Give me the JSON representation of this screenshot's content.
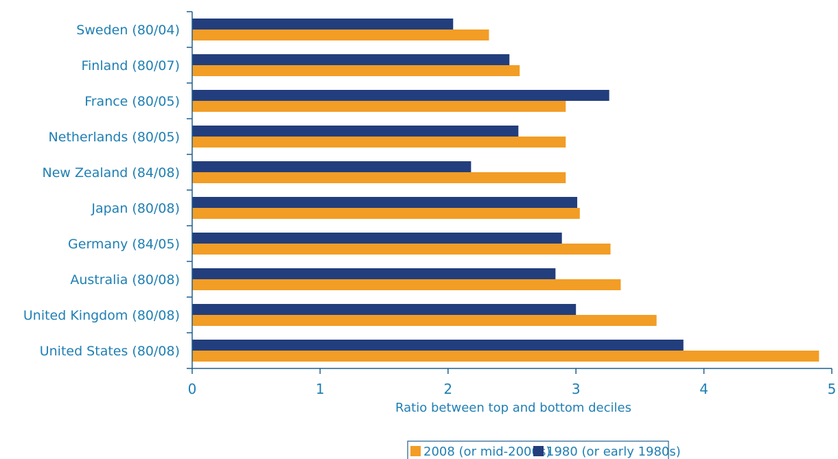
{
  "chart_data": {
    "type": "bar",
    "orientation": "horizontal",
    "xlabel": "Ratio between top and bottom deciles",
    "xlim": [
      0,
      5
    ],
    "xticks": [
      "0",
      "1",
      "2",
      "3",
      "4",
      "5"
    ],
    "grid": false,
    "legend_position": "bottom",
    "categories": [
      "Sweden (80/04)",
      "Finland (80/07)",
      "France (80/05)",
      "Netherlands (80/05)",
      "New Zealand (84/08)",
      "Japan (80/08)",
      "Germany (84/05)",
      "Australia (80/08)",
      "United Kingdom (80/08)",
      "United States (80/08)"
    ],
    "series": [
      {
        "name": "1980 (or early 1980s)",
        "color": "#233e7c",
        "values": [
          2.04,
          2.48,
          3.26,
          2.55,
          2.18,
          3.01,
          2.89,
          2.84,
          3.0,
          3.84
        ]
      },
      {
        "name": "2008 (or mid-2000s)",
        "color": "#f29d25",
        "values": [
          2.32,
          2.56,
          2.92,
          2.92,
          2.92,
          3.03,
          3.27,
          3.35,
          3.63,
          4.9
        ]
      }
    ],
    "legend": [
      "2008 (or mid-2000s)",
      "1980 (or early 1980s)"
    ]
  }
}
